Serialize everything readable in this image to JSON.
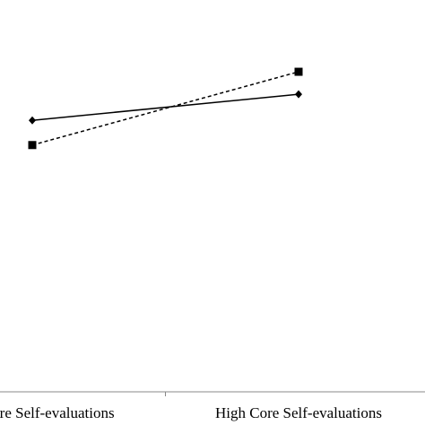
{
  "chart_data": {
    "type": "line",
    "categories": [
      "Low Core Self-evaluations",
      "High Core Self-evaluations"
    ],
    "series": [
      {
        "color": "#000000",
        "marker": "diamond",
        "line_style": "solid",
        "values": [
          3.63,
          3.98
        ]
      },
      {
        "color": "#000000",
        "marker": "square",
        "line_style": "dashed",
        "values": [
          3.3,
          4.28
        ]
      }
    ],
    "ylim": [
      0,
      5
    ]
  }
}
